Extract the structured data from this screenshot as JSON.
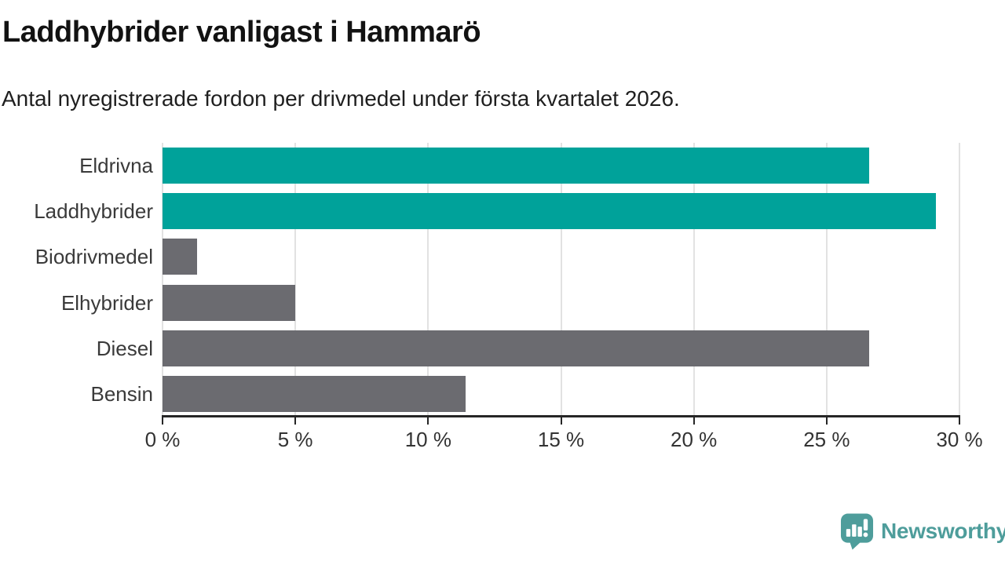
{
  "header": {
    "title": "Laddhybrider vanligast i Hammarö",
    "subtitle": "Antal nyregistrerade fordon per drivmedel under första kvartalet 2026."
  },
  "colors": {
    "bar_teal": "#00a29a",
    "bar_gray": "#6b6b70",
    "logo_teal": "#4e9d9b",
    "gridline": "#e2e2e2",
    "axis_line": "#262626",
    "text_dark": "#121212",
    "text_label": "#3a3a3a"
  },
  "chart_data": {
    "type": "bar",
    "orientation": "horizontal",
    "title": "Laddhybrider vanligast i Hammarö",
    "subtitle": "Antal nyregistrerade fordon per drivmedel under första kvartalet 2026.",
    "xlabel": "",
    "ylabel": "",
    "unit": "%",
    "categories": [
      "Eldrivna",
      "Laddhybrider",
      "Biodrivmedel",
      "Elhybrider",
      "Diesel",
      "Bensin"
    ],
    "values": [
      26.6,
      29.1,
      1.3,
      5.0,
      26.6,
      11.4
    ],
    "bar_colors": [
      "#00a29a",
      "#00a29a",
      "#6b6b70",
      "#6b6b70",
      "#6b6b70",
      "#6b6b70"
    ],
    "xlim": [
      0,
      30
    ],
    "x_ticks": [
      0,
      5,
      10,
      15,
      20,
      25,
      30
    ],
    "x_tick_labels": [
      "0 %",
      "5 %",
      "10 %",
      "15 %",
      "20 %",
      "25 %",
      "30 %"
    ],
    "grid": "vertical",
    "legend": "none"
  },
  "footer": {
    "brand": "Newsworthy"
  }
}
